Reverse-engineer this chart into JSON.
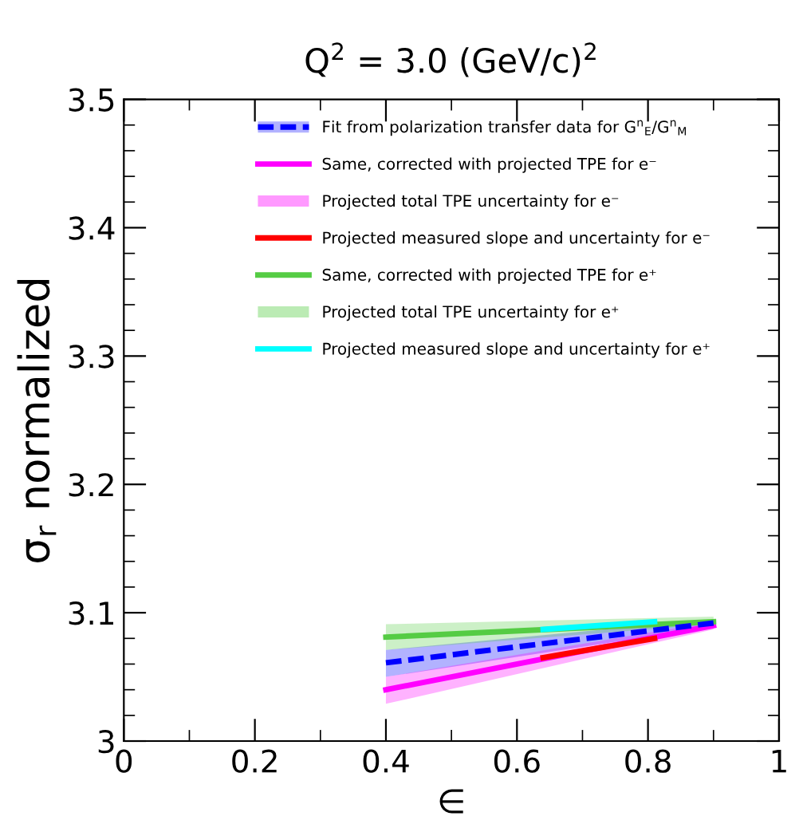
{
  "chart_data": {
    "type": "line",
    "title": "Q$^{2}$ = 3.0 (GeV/c)$^{2}$",
    "xlabel": "∈",
    "ylabel": "σ$_{r}$ normalized",
    "xlim": [
      0,
      1
    ],
    "ylim": [
      3.0,
      3.5
    ],
    "xticks": [
      0,
      0.2,
      0.4,
      0.6,
      0.8,
      1
    ],
    "yticks": [
      3,
      3.1,
      3.2,
      3.3,
      3.4,
      3.5
    ],
    "legend": "top",
    "series": [
      {
        "name": "Fit from polarization transfer data for G$^{n}$$_{E}$/G$^{n}$$_{M}$",
        "color": "#0000ff",
        "line_style": "dashed",
        "x": [
          0.4,
          0.9
        ],
        "values": [
          3.061,
          3.092
        ],
        "lower": [
          3.05,
          3.089
        ],
        "upper": [
          3.071,
          3.095
        ]
      },
      {
        "name": "Same, corrected with projected TPE for e⁻",
        "color": "#ff00ff",
        "line_style": "solid",
        "x": [
          0.4,
          0.9
        ],
        "values": [
          3.04,
          3.09
        ]
      },
      {
        "name": "Projected total TPE uncertainty for e⁻",
        "color": "#ff00ff",
        "x": [
          0.4,
          0.9
        ],
        "values": [
          null,
          null
        ],
        "lower": [
          3.029,
          3.087
        ],
        "upper": [
          3.05,
          3.093
        ]
      },
      {
        "name": "Projected measured slope and uncertainty for e⁻",
        "color": "#ff0000",
        "line_style": "solid",
        "x": [
          0.64,
          0.81
        ],
        "values": [
          3.065,
          3.08
        ]
      },
      {
        "name": "Same, corrected with projected TPE for e⁺",
        "color": "#55cc44",
        "line_style": "solid",
        "x": [
          0.4,
          0.9
        ],
        "values": [
          3.081,
          3.093
        ]
      },
      {
        "name": "Projected total TPE uncertainty for e⁺",
        "color": "#55cc44",
        "x": [
          0.4,
          0.9
        ],
        "values": [
          null,
          null
        ],
        "lower": [
          3.071,
          3.091
        ],
        "upper": [
          3.091,
          3.097
        ]
      },
      {
        "name": "Projected measured slope and uncertainty for e⁺",
        "color": "#00ffff",
        "line_style": "solid",
        "x": [
          0.64,
          0.81
        ],
        "values": [
          3.087,
          3.093
        ]
      }
    ]
  }
}
